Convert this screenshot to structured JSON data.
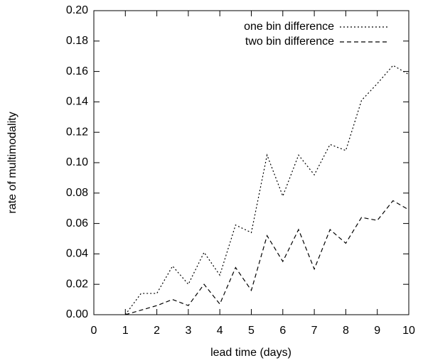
{
  "chart_data": {
    "type": "line",
    "xlabel": "lead time (days)",
    "ylabel": "rate of multimodality",
    "x": [
      1,
      1.5,
      2,
      2.5,
      3,
      3.5,
      4,
      4.5,
      5,
      5.5,
      6,
      6.5,
      7,
      7.5,
      8,
      8.5,
      9,
      9.5,
      10
    ],
    "series": [
      {
        "name": "one bin difference",
        "color": "#000000",
        "style": "dotted",
        "values": [
          0.0,
          0.014,
          0.014,
          0.032,
          0.02,
          0.041,
          0.026,
          0.059,
          0.054,
          0.105,
          0.078,
          0.105,
          0.092,
          0.112,
          0.108,
          0.141,
          0.152,
          0.164,
          0.158
        ]
      },
      {
        "name": "two bin difference",
        "color": "#000000",
        "style": "dashed",
        "values": [
          0.0,
          0.003,
          0.006,
          0.01,
          0.006,
          0.02,
          0.007,
          0.031,
          0.016,
          0.052,
          0.035,
          0.056,
          0.03,
          0.056,
          0.047,
          0.064,
          0.062,
          0.075,
          0.069
        ]
      }
    ],
    "xlim": [
      0,
      10
    ],
    "xticks": [
      0,
      1,
      2,
      3,
      4,
      5,
      6,
      7,
      8,
      9,
      10
    ],
    "ylim": [
      0,
      0.2
    ],
    "yticks": [
      {
        "value": 0,
        "label": "0.00"
      },
      {
        "value": 0.02,
        "label": "0.02"
      },
      {
        "value": 0.04,
        "label": "0.04"
      },
      {
        "value": 0.06,
        "label": "0.06"
      },
      {
        "value": 0.08,
        "label": "0.08"
      },
      {
        "value": 0.1,
        "label": "0.10"
      },
      {
        "value": 0.12,
        "label": "0.12"
      },
      {
        "value": 0.14,
        "label": "0.14"
      },
      {
        "value": 0.16,
        "label": "0.16"
      },
      {
        "value": 0.18,
        "label": "0.18"
      },
      {
        "value": 0.2,
        "label": "0.20"
      }
    ],
    "legend": "top-right",
    "grid": false
  }
}
